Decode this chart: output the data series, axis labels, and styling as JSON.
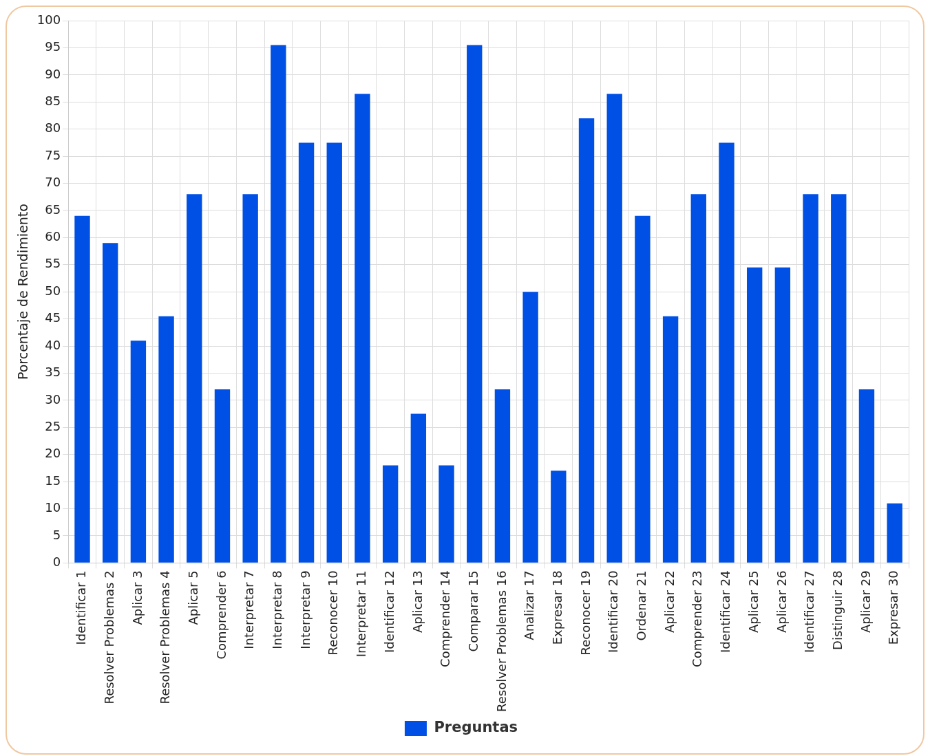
{
  "chart_data": {
    "type": "bar",
    "ylabel": "Porcentaje de Rendimiento",
    "categories": [
      "Identificar 1",
      "Resolver Problemas 2",
      "Aplicar 3",
      "Resolver Problemas 4",
      "Aplicar 5",
      "Comprender 6",
      "Interpretar 7",
      "Interpretar 8",
      "Interpretar 9",
      "Reconocer 10",
      "Interpretar 11",
      "Identificar 12",
      "Aplicar 13",
      "Comprender 14",
      "Comparar 15",
      "Resolver Problemas 16",
      "Analizar 17",
      "Expresar 18",
      "Reconocer 19",
      "Identificar 20",
      "Ordenar 21",
      "Aplicar 22",
      "Comprender 23",
      "Identificar 24",
      "Aplicar 25",
      "Aplicar 26",
      "Identificar 27",
      "Distinguir 28",
      "Aplicar 29",
      "Expresar 30"
    ],
    "series": [
      {
        "name": "Preguntas",
        "color": "#0050e6",
        "values": [
          64,
          59,
          41,
          45.5,
          68,
          32,
          68,
          95.5,
          77.5,
          77.5,
          86.5,
          18,
          27.5,
          18,
          95.5,
          32,
          50,
          17,
          82,
          86.5,
          64,
          45.5,
          68,
          77.5,
          54.5,
          54.5,
          68,
          68,
          32,
          11
        ]
      }
    ],
    "ylim": [
      0,
      100
    ],
    "yticks": [
      0,
      5,
      10,
      15,
      20,
      25,
      30,
      35,
      40,
      45,
      50,
      55,
      60,
      65,
      70,
      75,
      80,
      85,
      90,
      95,
      100
    ],
    "grid": true,
    "legend": "bottom"
  }
}
